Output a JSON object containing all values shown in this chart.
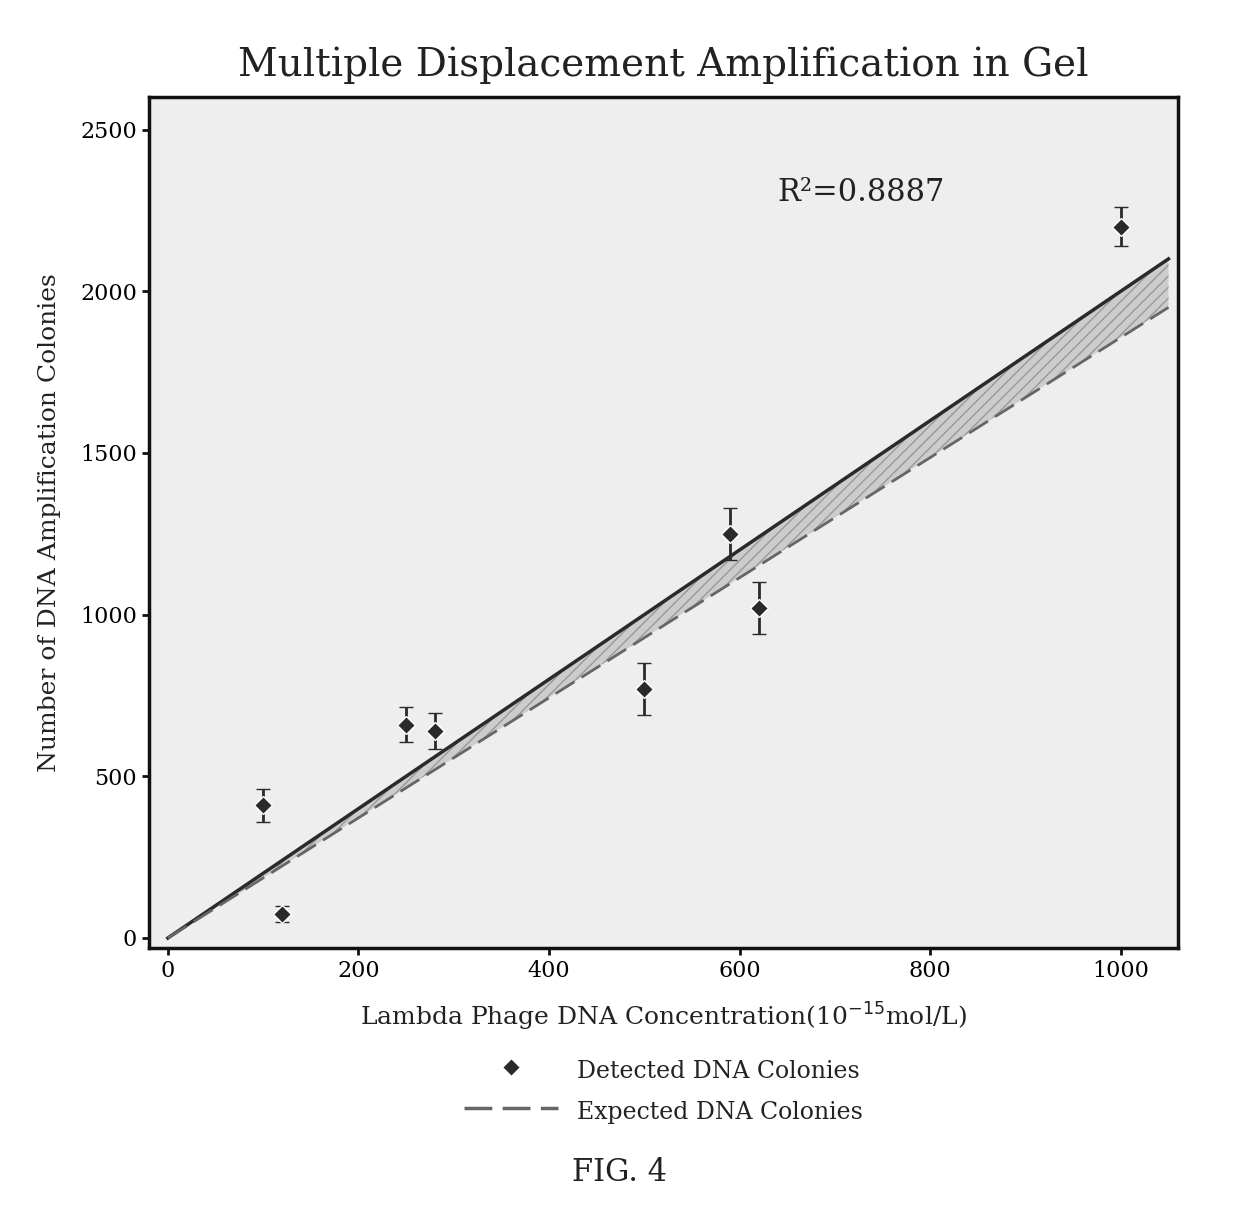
{
  "title": "Multiple Displacement Amplification in Gel",
  "xlabel": "Lambda Phage DNA Concentration(10⁻¹⁵mol/L)",
  "ylabel": "Number of DNA Amplification Colonies",
  "xlim": [
    -20,
    1060
  ],
  "ylim": [
    -30,
    2600
  ],
  "xticks": [
    0,
    200,
    400,
    600,
    800,
    1000
  ],
  "yticks": [
    0,
    500,
    1000,
    1500,
    2000,
    2500
  ],
  "data_x": [
    100,
    120,
    250,
    280,
    500,
    590,
    620,
    1000
  ],
  "data_y": [
    410,
    75,
    660,
    640,
    770,
    1250,
    1020,
    2200
  ],
  "data_yerr": [
    50,
    25,
    55,
    55,
    80,
    80,
    80,
    60
  ],
  "line1_x": [
    0,
    1050
  ],
  "line1_y": [
    0,
    2100
  ],
  "line2_x": [
    0,
    1050
  ],
  "line2_y": [
    0,
    1950
  ],
  "r2_text": "R²=0.8887",
  "r2_x": 640,
  "r2_y": 2280,
  "fig_caption": "FIG. 4",
  "legend_detected": "Detected DNA Colonies",
  "legend_expected": "Expected DNA Colonies",
  "title_fontsize": 28,
  "label_fontsize": 18,
  "tick_fontsize": 16,
  "annotation_fontsize": 22,
  "legend_fontsize": 17,
  "caption_fontsize": 22,
  "data_color": "#2a2a2a",
  "line1_color": "#2a2a2a",
  "line2_color": "#666666",
  "band_color": "#bbbbbb",
  "background_color": "#ffffff",
  "plot_bg_color": "#eeeeee"
}
